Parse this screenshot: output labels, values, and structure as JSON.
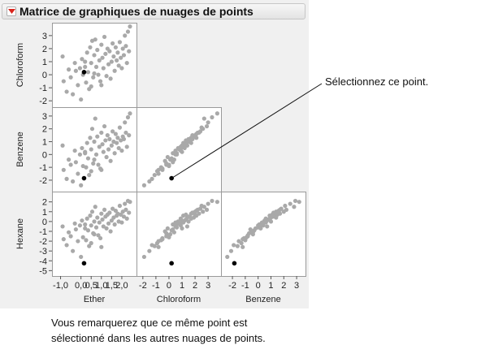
{
  "title": "Matrice de graphiques de nuages de points",
  "menu_icon": "red-triangle-menu-icon",
  "point_color": "#a9a9a9",
  "selected_color": "#000000",
  "callout_text": "Sélectionnez ce point.",
  "note_lines": [
    "Vous remarquerez que ce même point est",
    "sélectionné dans les autres nuages de points."
  ],
  "chart_data": {
    "type": "scatter",
    "variables": [
      {
        "name": "Ether",
        "ticks": [
          "-1,0",
          "0,0",
          "0,5",
          "1,0",
          "1,5",
          "2,0"
        ],
        "tick_values": [
          -1,
          0,
          0.5,
          1,
          1.5,
          2
        ],
        "range": [
          -1.3,
          2.6
        ]
      },
      {
        "name": "Chloroform",
        "ticks": [
          "-2",
          "-1",
          "0",
          "1",
          "2",
          "3"
        ],
        "tick_values": [
          -2,
          -1,
          0,
          1,
          2,
          3
        ],
        "range": [
          -2.3,
          3.8
        ]
      },
      {
        "name": "Benzene",
        "ticks": [
          "-2",
          "-1",
          "0",
          "1",
          "2",
          "3"
        ],
        "tick_values": [
          -2,
          -1,
          0,
          1,
          2,
          3
        ],
        "range": [
          -2.7,
          3.5
        ]
      },
      {
        "name": "Hexane",
        "ticks": [
          "-5",
          "-4",
          "-3",
          "-2",
          "-1",
          "0",
          "1",
          "2"
        ],
        "tick_values": [
          -5,
          -4,
          -3,
          -2,
          -1,
          0,
          1,
          2
        ],
        "range": [
          -5.3,
          2.8
        ]
      }
    ],
    "rows": [
      "Chloroform",
      "Benzene",
      "Hexane"
    ],
    "columns": [
      "Ether",
      "Chloroform",
      "Benzene"
    ],
    "selected_point": {
      "Ether": 0.15,
      "Chloroform": 0.2,
      "Benzene": -1.85,
      "Hexane": -4.25
    },
    "points": [
      {
        "Ether": -0.9,
        "Chloroform": 1.4,
        "Benzene": 0.7,
        "Hexane": -0.5
      },
      {
        "Ether": -0.85,
        "Chloroform": -0.5,
        "Benzene": -1.2,
        "Hexane": -1.8
      },
      {
        "Ether": -0.7,
        "Chloroform": -1.3,
        "Benzene": -1.9,
        "Hexane": -2.4
      },
      {
        "Ether": -0.6,
        "Chloroform": 0.4,
        "Benzene": -0.4,
        "Hexane": -1.1
      },
      {
        "Ether": -0.5,
        "Chloroform": -0.2,
        "Benzene": -0.8,
        "Hexane": -1.5
      },
      {
        "Ether": -0.4,
        "Chloroform": -1.5,
        "Benzene": -2.1,
        "Hexane": -3.0
      },
      {
        "Ether": -0.3,
        "Chloroform": 0.9,
        "Benzene": 0.3,
        "Hexane": -0.2
      },
      {
        "Ether": -0.25,
        "Chloroform": 0.3,
        "Benzene": -0.6,
        "Hexane": -0.8
      },
      {
        "Ether": -0.15,
        "Chloroform": -0.8,
        "Benzene": -1.5,
        "Hexane": -2.0
      },
      {
        "Ether": -0.05,
        "Chloroform": 0.5,
        "Benzene": 0.0,
        "Hexane": -0.4
      },
      {
        "Ether": 0.0,
        "Chloroform": -1.9,
        "Benzene": -2.4,
        "Hexane": -3.6
      },
      {
        "Ether": 0.05,
        "Chloroform": 1.2,
        "Benzene": 0.5,
        "Hexane": 0.1
      },
      {
        "Ether": 0.1,
        "Chloroform": 0.0,
        "Benzene": -0.9,
        "Hexane": -1.6
      },
      {
        "Ether": 0.2,
        "Chloroform": 0.6,
        "Benzene": 0.1,
        "Hexane": -0.3
      },
      {
        "Ether": 0.25,
        "Chloroform": -0.6,
        "Benzene": -1.0,
        "Hexane": -1.9
      },
      {
        "Ether": 0.3,
        "Chloroform": 1.7,
        "Benzene": 0.9,
        "Hexane": 0.3
      },
      {
        "Ether": 0.35,
        "Chloroform": 0.2,
        "Benzene": -0.3,
        "Hexane": -0.9
      },
      {
        "Ether": 0.4,
        "Chloroform": -1.1,
        "Benzene": -1.6,
        "Hexane": -2.5
      },
      {
        "Ether": 0.45,
        "Chloroform": 2.1,
        "Benzene": 1.3,
        "Hexane": 0.6
      },
      {
        "Ether": 0.5,
        "Chloroform": 0.9,
        "Benzene": 0.4,
        "Hexane": -0.4
      },
      {
        "Ether": 0.55,
        "Chloroform": 2.6,
        "Benzene": 2.0,
        "Hexane": 1.0
      },
      {
        "Ether": 0.6,
        "Chloroform": -0.2,
        "Benzene": -0.7,
        "Hexane": -1.2
      },
      {
        "Ether": 0.65,
        "Chloroform": 1.5,
        "Benzene": 1.0,
        "Hexane": 0.0
      },
      {
        "Ether": 0.7,
        "Chloroform": 2.7,
        "Benzene": 2.8,
        "Hexane": 1.5
      },
      {
        "Ether": 0.75,
        "Chloroform": 0.6,
        "Benzene": 0.0,
        "Hexane": -0.6
      },
      {
        "Ether": 0.8,
        "Chloroform": 1.9,
        "Benzene": 1.4,
        "Hexane": 0.4
      },
      {
        "Ether": 0.85,
        "Chloroform": 0.0,
        "Benzene": -0.8,
        "Hexane": -1.4
      },
      {
        "Ether": 0.9,
        "Chloroform": 1.1,
        "Benzene": 0.6,
        "Hexane": -0.1
      },
      {
        "Ether": 0.95,
        "Chloroform": -0.5,
        "Benzene": -1.1,
        "Hexane": -1.7
      },
      {
        "Ether": 1.0,
        "Chloroform": 2.3,
        "Benzene": 1.7,
        "Hexane": 0.8
      },
      {
        "Ether": 1.05,
        "Chloroform": 1.3,
        "Benzene": 0.8,
        "Hexane": 0.2
      },
      {
        "Ether": 1.1,
        "Chloroform": 0.5,
        "Benzene": 0.2,
        "Hexane": -0.5
      },
      {
        "Ether": 1.15,
        "Chloroform": 2.9,
        "Benzene": 2.2,
        "Hexane": 1.2
      },
      {
        "Ether": 1.2,
        "Chloroform": 1.6,
        "Benzene": 1.1,
        "Hexane": 0.5
      },
      {
        "Ether": 1.25,
        "Chloroform": -0.1,
        "Benzene": -0.2,
        "Hexane": -0.7
      },
      {
        "Ether": 1.3,
        "Chloroform": 2.0,
        "Benzene": 1.5,
        "Hexane": 0.7
      },
      {
        "Ether": 1.35,
        "Chloroform": 0.8,
        "Benzene": 0.4,
        "Hexane": -0.2
      },
      {
        "Ether": 1.4,
        "Chloroform": 1.8,
        "Benzene": 1.2,
        "Hexane": 0.9
      },
      {
        "Ether": 1.45,
        "Chloroform": -0.3,
        "Benzene": -0.5,
        "Hexane": -1.0
      },
      {
        "Ether": 1.5,
        "Chloroform": 1.0,
        "Benzene": 0.7,
        "Hexane": 0.1
      },
      {
        "Ether": 1.55,
        "Chloroform": 2.4,
        "Benzene": 1.8,
        "Hexane": 1.3
      },
      {
        "Ether": 1.6,
        "Chloroform": 1.4,
        "Benzene": 1.0,
        "Hexane": 0.4
      },
      {
        "Ether": 1.65,
        "Chloroform": 0.3,
        "Benzene": 0.1,
        "Hexane": -0.3
      },
      {
        "Ether": 1.7,
        "Chloroform": 2.1,
        "Benzene": 1.6,
        "Hexane": 1.1
      },
      {
        "Ether": 1.75,
        "Chloroform": 1.1,
        "Benzene": 0.9,
        "Hexane": 0.6
      },
      {
        "Ether": 1.8,
        "Chloroform": 1.7,
        "Benzene": 1.3,
        "Hexane": 0.8
      },
      {
        "Ether": 1.85,
        "Chloroform": 0.7,
        "Benzene": 0.5,
        "Hexane": 0.0
      },
      {
        "Ether": 1.9,
        "Chloroform": 2.5,
        "Benzene": 2.1,
        "Hexane": 1.6
      },
      {
        "Ether": 1.95,
        "Chloroform": 1.3,
        "Benzene": 1.1,
        "Hexane": 0.7
      },
      {
        "Ether": 2.0,
        "Chloroform": 0.5,
        "Benzene": 0.3,
        "Hexane": -0.1
      },
      {
        "Ether": 2.05,
        "Chloroform": 2.0,
        "Benzene": 1.4,
        "Hexane": 1.0
      },
      {
        "Ether": 2.1,
        "Chloroform": 1.5,
        "Benzene": 1.2,
        "Hexane": 0.5
      },
      {
        "Ether": 2.15,
        "Chloroform": 3.0,
        "Benzene": 2.5,
        "Hexane": 1.8
      },
      {
        "Ether": 2.2,
        "Chloroform": 2.2,
        "Benzene": 1.7,
        "Hexane": 1.2
      },
      {
        "Ether": 2.25,
        "Chloroform": 0.9,
        "Benzene": 0.6,
        "Hexane": 0.3
      },
      {
        "Ether": 2.3,
        "Chloroform": 3.3,
        "Benzene": 2.9,
        "Hexane": 2.1
      },
      {
        "Ether": 2.35,
        "Chloroform": 1.8,
        "Benzene": 1.5,
        "Hexane": 0.9
      },
      {
        "Ether": 2.4,
        "Chloroform": 3.7,
        "Benzene": 3.2,
        "Hexane": 2.0
      },
      {
        "Ether": 0.5,
        "Chloroform": -0.9,
        "Benzene": -1.3,
        "Hexane": -2.2
      },
      {
        "Ether": 0.65,
        "Chloroform": 0.1,
        "Benzene": -0.4,
        "Hexane": -1.3
      },
      {
        "Ether": 1.0,
        "Chloroform": -0.8,
        "Benzene": -1.2,
        "Hexane": -2.6
      },
      {
        "Ether": 0.2,
        "Chloroform": 1.0,
        "Benzene": 0.2,
        "Hexane": -0.7
      }
    ]
  }
}
